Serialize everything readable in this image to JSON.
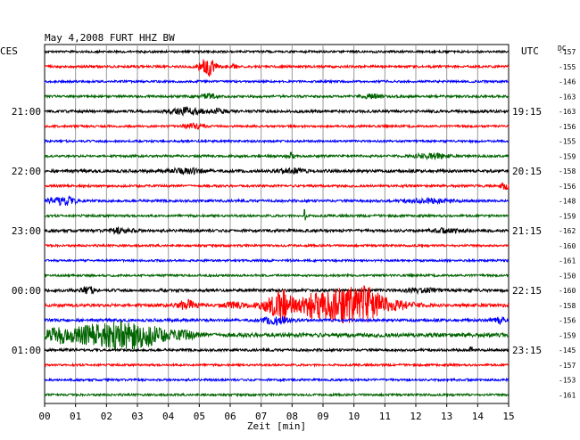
{
  "chart_data": {
    "type": "line",
    "title": "May 4,2008   FURT HHZ BW",
    "left_label": "CES",
    "right_label": "UTC",
    "dc_label": "DC",
    "xlabel": "Zeit [min]",
    "xlim": [
      0,
      15
    ],
    "x_ticks": [
      "00",
      "01",
      "02",
      "03",
      "04",
      "05",
      "06",
      "07",
      "08",
      "09",
      "10",
      "11",
      "12",
      "13",
      "14",
      "15"
    ],
    "grid": true,
    "trace_colors": [
      "#000000",
      "#ff0000",
      "#0000ff",
      "#006400"
    ],
    "left_time_labels": [
      {
        "trace": 4,
        "text": "21:00"
      },
      {
        "trace": 8,
        "text": "22:00"
      },
      {
        "trace": 12,
        "text": "23:00"
      },
      {
        "trace": 16,
        "text": "00:00"
      },
      {
        "trace": 20,
        "text": "01:00"
      }
    ],
    "right_time_labels": [
      {
        "trace": 4,
        "text": "19:15"
      },
      {
        "trace": 8,
        "text": "20:15"
      },
      {
        "trace": 12,
        "text": "21:15"
      },
      {
        "trace": 16,
        "text": "22:15"
      },
      {
        "trace": 20,
        "text": "23:15"
      }
    ],
    "dc_offsets": [
      "-157",
      "-155",
      "-146",
      "-163",
      "-163",
      "-156",
      "-155",
      "-159",
      "-158",
      "-156",
      "-148",
      "-159",
      "-162",
      "-160",
      "-161",
      "-150",
      "-160",
      "-158",
      "-156",
      "-159",
      "-145",
      "-157",
      "-153",
      "-161"
    ],
    "series": [
      {
        "noise": 1.2,
        "events": []
      },
      {
        "noise": 1.3,
        "events": [
          {
            "t": 5.25,
            "amp": 11,
            "dur": 0.25
          },
          {
            "t": 6.05,
            "amp": 3,
            "dur": 0.15
          }
        ]
      },
      {
        "noise": 1.2,
        "events": []
      },
      {
        "noise": 1.3,
        "events": [
          {
            "t": 5.3,
            "amp": 2.5,
            "dur": 0.3
          },
          {
            "t": 10.6,
            "amp": 2.5,
            "dur": 0.3
          }
        ]
      },
      {
        "noise": 1.5,
        "events": [
          {
            "t": 4.6,
            "amp": 4,
            "dur": 0.5
          },
          {
            "t": 5.6,
            "amp": 2,
            "dur": 0.3
          }
        ]
      },
      {
        "noise": 1.2,
        "events": [
          {
            "t": 4.8,
            "amp": 2.5,
            "dur": 0.3
          }
        ]
      },
      {
        "noise": 1.2,
        "events": []
      },
      {
        "noise": 1.3,
        "events": [
          {
            "t": 7.95,
            "amp": 4,
            "dur": 0.1
          },
          {
            "t": 12.5,
            "amp": 3,
            "dur": 0.5
          }
        ]
      },
      {
        "noise": 1.6,
        "events": [
          {
            "t": 4.6,
            "amp": 3,
            "dur": 0.5
          },
          {
            "t": 8.0,
            "amp": 2.5,
            "dur": 0.4
          }
        ]
      },
      {
        "noise": 1.3,
        "events": [
          {
            "t": 14.9,
            "amp": 3,
            "dur": 0.2
          }
        ]
      },
      {
        "noise": 1.4,
        "events": [
          {
            "t": 0.6,
            "amp": 5,
            "dur": 0.4
          },
          {
            "t": 12.4,
            "amp": 2,
            "dur": 0.8
          }
        ]
      },
      {
        "noise": 1.3,
        "events": [
          {
            "t": 8.4,
            "amp": 7,
            "dur": 0.06
          }
        ]
      },
      {
        "noise": 1.5,
        "events": [
          {
            "t": 2.5,
            "amp": 2.5,
            "dur": 0.4
          },
          {
            "t": 13.0,
            "amp": 2,
            "dur": 0.5
          }
        ]
      },
      {
        "noise": 1.2,
        "events": []
      },
      {
        "noise": 1.2,
        "events": []
      },
      {
        "noise": 1.2,
        "events": []
      },
      {
        "noise": 1.6,
        "events": [
          {
            "t": 1.4,
            "amp": 4,
            "dur": 0.2
          },
          {
            "t": 12.2,
            "amp": 2,
            "dur": 0.5
          }
        ]
      },
      {
        "noise": 1.8,
        "events": [
          {
            "t": 4.6,
            "amp": 5,
            "dur": 0.3
          },
          {
            "t": 6.2,
            "amp": 3,
            "dur": 0.4
          },
          {
            "t": 7.1,
            "amp": 3,
            "dur": 0.3
          },
          {
            "t": 7.65,
            "amp": 20,
            "dur": 0.35
          },
          {
            "t": 8.6,
            "amp": 9,
            "dur": 0.4
          },
          {
            "t": 9.6,
            "amp": 18,
            "dur": 0.8
          },
          {
            "t": 10.5,
            "amp": 14,
            "dur": 0.5
          },
          {
            "t": 11.4,
            "amp": 4,
            "dur": 0.6
          }
        ]
      },
      {
        "noise": 1.5,
        "events": [
          {
            "t": 7.5,
            "amp": 4,
            "dur": 0.4
          },
          {
            "t": 14.7,
            "amp": 3,
            "dur": 0.3
          }
        ]
      },
      {
        "noise": 2.2,
        "events": [
          {
            "t": 0.5,
            "amp": 8,
            "dur": 0.5
          },
          {
            "t": 1.5,
            "amp": 9,
            "dur": 0.6
          },
          {
            "t": 2.6,
            "amp": 15,
            "dur": 0.7
          },
          {
            "t": 3.5,
            "amp": 7,
            "dur": 0.5
          },
          {
            "t": 4.5,
            "amp": 4,
            "dur": 0.5
          }
        ]
      },
      {
        "noise": 1.4,
        "events": [
          {
            "t": 13.8,
            "amp": 4,
            "dur": 0.05
          }
        ]
      },
      {
        "noise": 1.2,
        "events": []
      },
      {
        "noise": 1.2,
        "events": []
      },
      {
        "noise": 1.2,
        "events": []
      }
    ]
  }
}
